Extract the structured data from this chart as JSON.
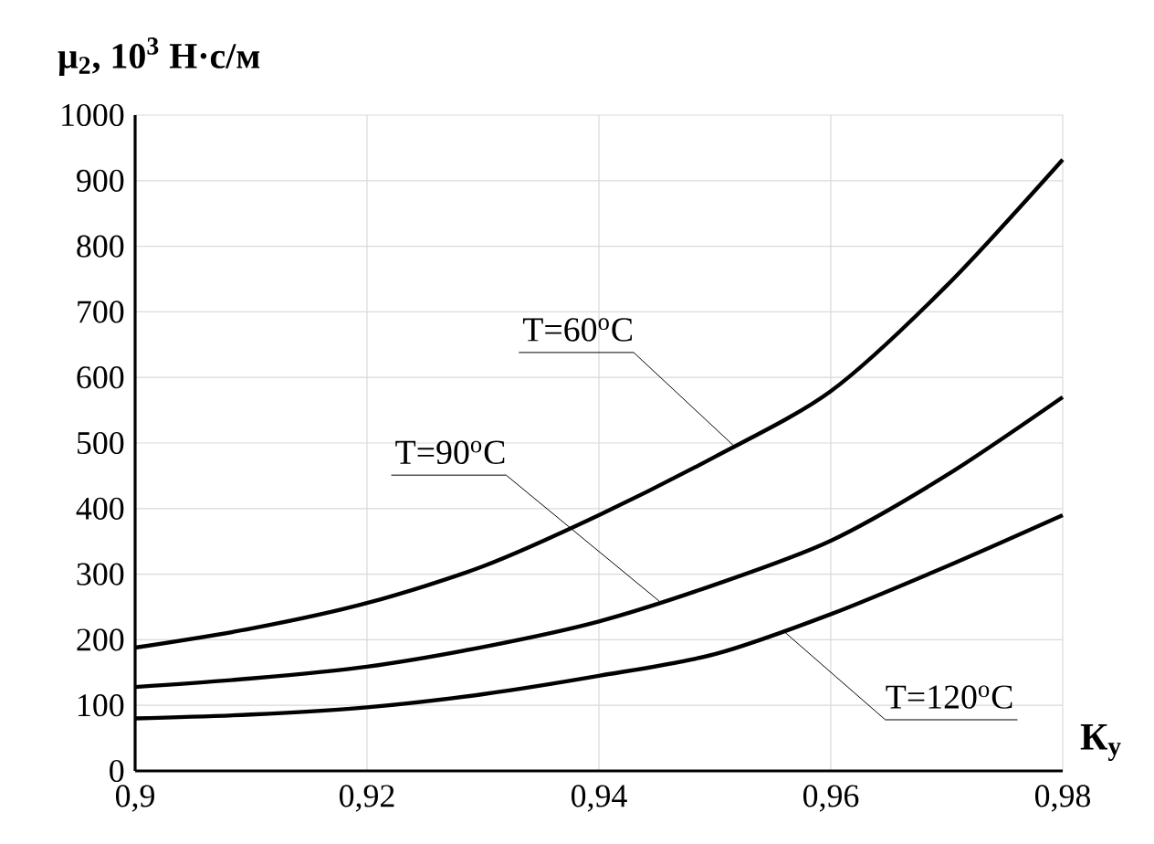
{
  "chart_data": {
    "type": "line",
    "xlabel": "К$_{у}$",
    "ylabel": "μ$_{2}$, 10$^{3}$ Н·с/м",
    "x": [
      0.9,
      0.91,
      0.92,
      0.93,
      0.94,
      0.95,
      0.96,
      0.97,
      0.98
    ],
    "series": [
      {
        "color": "#000000",
        "values": [
          188,
          217,
          256,
          312,
          390,
          479,
          579,
          740,
          932
        ]
      },
      {
        "color": "#000000",
        "values": [
          128,
          141,
          159,
          189,
          228,
          284,
          351,
          451,
          570
        ]
      },
      {
        "color": "#000000",
        "values": [
          80,
          86,
          97,
          117,
          145,
          178,
          239,
          312,
          390
        ]
      }
    ],
    "xlim": [
      0.9,
      0.98
    ],
    "xticks": [
      {
        "value": 0.9,
        "label": "0,9"
      },
      {
        "value": 0.92,
        "label": "0,92"
      },
      {
        "value": 0.94,
        "label": "0,94"
      },
      {
        "value": 0.96,
        "label": "0,96"
      },
      {
        "value": 0.98,
        "label": "0,98"
      }
    ],
    "ylim": [
      0,
      1000
    ],
    "yticks": [
      0,
      100,
      200,
      300,
      400,
      500,
      600,
      700,
      800,
      900,
      1000
    ],
    "grid": true,
    "marker": "none",
    "line_style": "solid",
    "annotations": [
      {
        "text": "T=60$^{o}$C",
        "x": 0.9518,
        "y": 493
      },
      {
        "text": "T=90$^{o}$C",
        "x": 0.9454,
        "y": 256
      },
      {
        "text": "T=120$^{o}$C",
        "x": 0.956,
        "y": 212
      }
    ]
  }
}
